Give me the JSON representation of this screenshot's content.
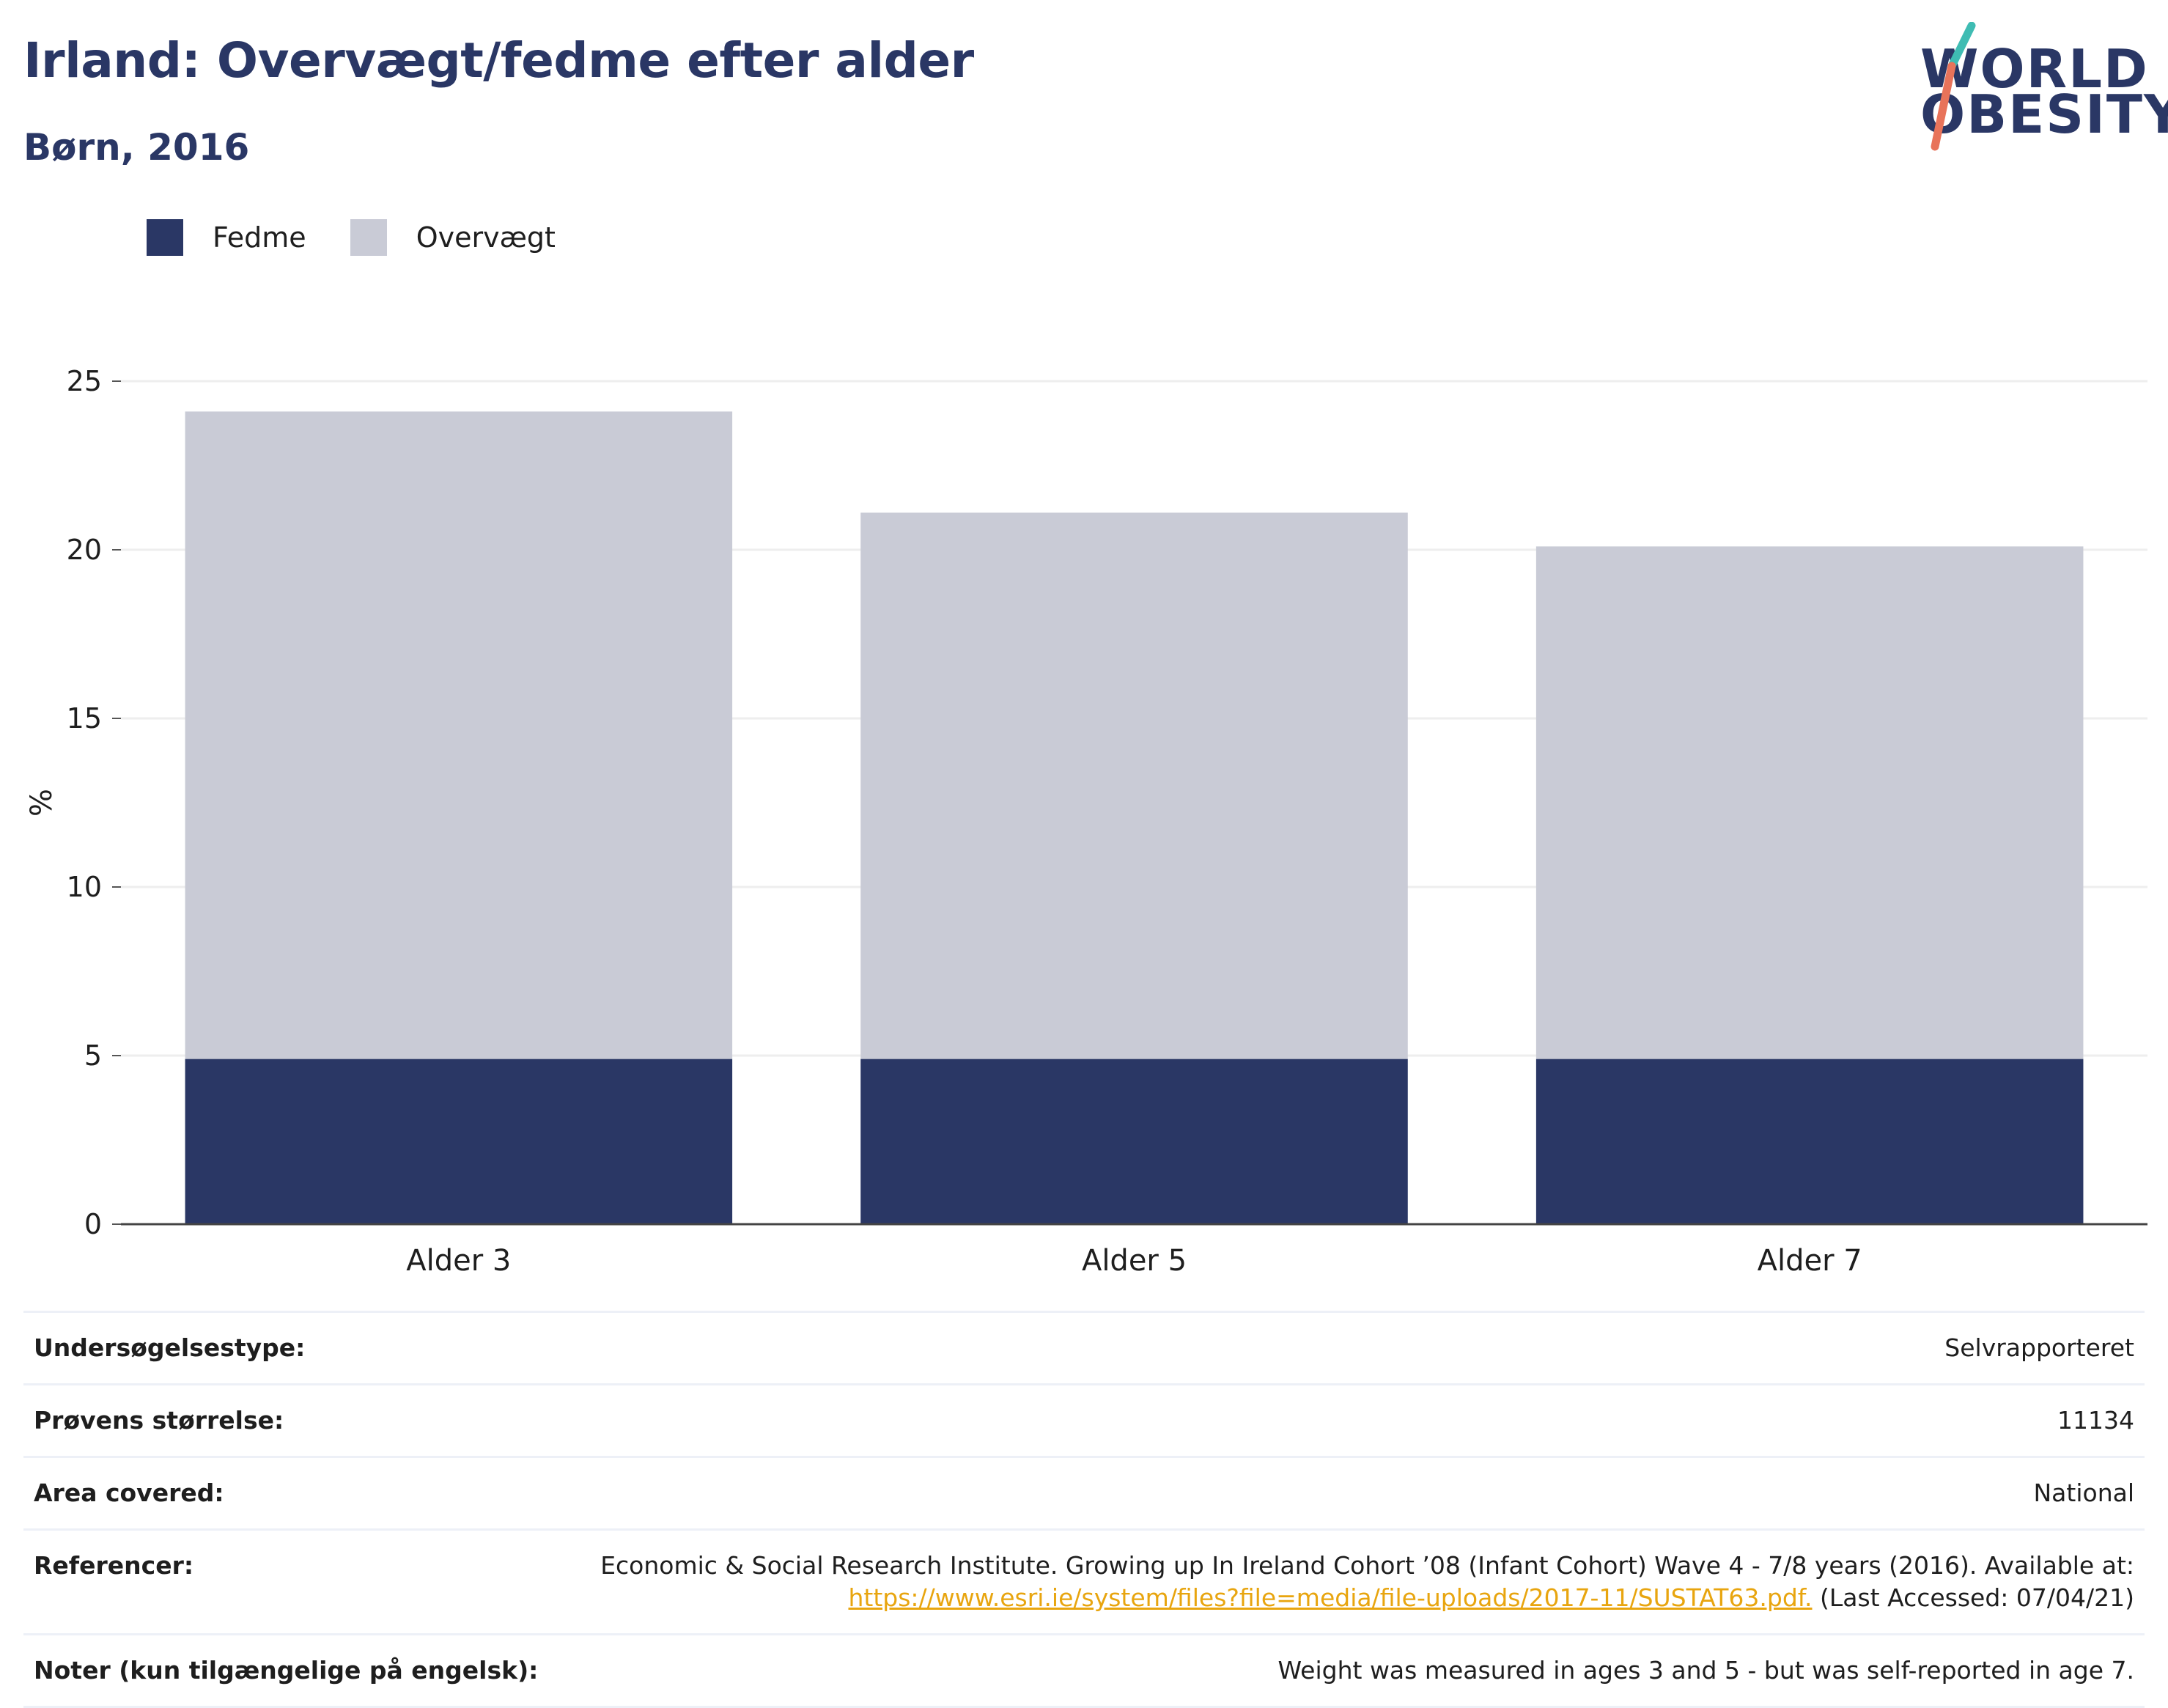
{
  "header": {
    "title": "Irland: Overvægt/fedme efter alder",
    "subtitle": "Børn, 2016",
    "logo_line1": "WORLD",
    "logo_line2": "OBESITY"
  },
  "colors": {
    "fedme": "#2a3765",
    "overvaegt": "#c9cbd6",
    "axis": "#444444",
    "grid": "#eeeeee",
    "link": "#e8a50f",
    "logo_teal": "#3fbcb3",
    "logo_coral": "#e8735a"
  },
  "chart_data": {
    "type": "bar",
    "stacked": true,
    "categories": [
      "Alder 3",
      "Alder 5",
      "Alder 7"
    ],
    "series": [
      {
        "name": "Fedme",
        "values": [
          4.9,
          4.9,
          4.9
        ]
      },
      {
        "name": "Overvægt",
        "values": [
          19.2,
          16.2,
          15.2
        ]
      }
    ],
    "ylabel": "%",
    "xlabel": "",
    "ylim": [
      0,
      25
    ],
    "yticks": [
      0,
      5,
      10,
      15,
      20,
      25
    ],
    "grid": true,
    "legend_position": "top-left"
  },
  "info": {
    "survey_type_label": "Undersøgelsestype:",
    "survey_type_value": "Selvrapporteret",
    "sample_size_label": "Prøvens størrelse:",
    "sample_size_value": "11134",
    "area_label": "Area covered:",
    "area_value": "National",
    "ref_label": "Referencer:",
    "ref_text": "Economic & Social Research Institute. Growing up In Ireland Cohort ’08 (Infant Cohort) Wave 4 - 7/8 years (2016). Available at:",
    "ref_link": "https://www.esri.ie/system/files?file=media/file-uploads/2017-11/SUSTAT63.pdf.",
    "ref_suffix": " (Last Accessed: 07/04/21)",
    "notes_label": "Noter (kun tilgængelige på engelsk):",
    "notes_value": "Weight was measured in ages 3 and 5 - but was self-reported in age 7."
  }
}
